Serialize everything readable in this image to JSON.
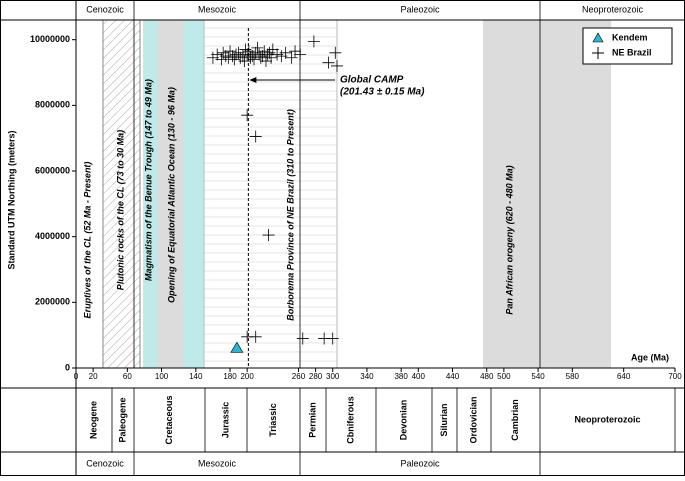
{
  "chart_data": {
    "type": "scatter",
    "ylabel": "Standard UTM Northing (meters)",
    "xlabel": "Age (Ma)",
    "xlim": [
      0,
      700
    ],
    "ylim": [
      0,
      10600000
    ],
    "xticks": [
      0,
      20,
      60,
      100,
      140,
      180,
      200,
      260,
      280,
      300,
      340,
      380,
      400,
      440,
      480,
      500,
      540,
      580,
      640,
      700
    ],
    "yticks": [
      0,
      2000000,
      4000000,
      6000000,
      8000000,
      10000000
    ],
    "eras_top": [
      "Cenozoic",
      "Mesozoic",
      "Paleozoic",
      "Neoproterozoic"
    ],
    "periods": [
      "Neogene",
      "Paleogene",
      "Cretaceous",
      "Jurassic",
      "Triassic",
      "Permian",
      "Cbniferous",
      "Devonian",
      "Silurian",
      "Ordovician",
      "Cambrian",
      "Neoproterozoic"
    ],
    "eras_bottom": [
      "Cenozoic",
      "Mesozoic",
      "Paleozoic"
    ],
    "band_labels": [
      "Eruptives of the CL (52 Ma - Present)",
      "Plutonic rocks of the CL (73 to 30 Ma)",
      "Magmatism of the Benue Trough (147 to 49 Ma)",
      "Opening of Equatorial Atlantic  Ocean  (130 - 96 Ma)",
      "Borborema Province of NE Brazil (310 to Present)",
      "Pan African orogeny (620 - 480 Ma)"
    ],
    "annotation": [
      "Global CAMP",
      "(201.43 ± 0.15 Ma)"
    ],
    "reference_line": 201.43,
    "series": [
      {
        "name": "Kendem",
        "color": "#2bb5d6",
        "marker": "triangle",
        "x": [
          188
        ],
        "y": [
          600000
        ]
      },
      {
        "name": "NE Brazil",
        "color": "#000000",
        "marker": "plus",
        "x": [
          160,
          165,
          170,
          172,
          175,
          178,
          180,
          183,
          185,
          187,
          190,
          192,
          195,
          197,
          198,
          200,
          202,
          204,
          206,
          208,
          210,
          212,
          214,
          216,
          218,
          220,
          222,
          224,
          226,
          228,
          230,
          235,
          240,
          245,
          252,
          256,
          262,
          278,
          295,
          303,
          305,
          200,
          210,
          225,
          200,
          210,
          265,
          290,
          300
        ],
        "y": [
          9450000,
          9550000,
          9400000,
          9600000,
          9500000,
          9450000,
          9650000,
          9500000,
          9400000,
          9550000,
          9600000,
          9450000,
          9500000,
          9350000,
          9700000,
          9550000,
          9650000,
          9450000,
          9500000,
          9400000,
          9600000,
          9750000,
          9550000,
          9450000,
          9500000,
          9650000,
          9350000,
          9550000,
          9600000,
          9450000,
          9700000,
          9550000,
          9500000,
          9600000,
          9450000,
          9650000,
          9550000,
          9950000,
          9300000,
          9600000,
          9200000,
          7700000,
          7050000,
          4050000,
          950000,
          950000,
          900000,
          900000,
          900000
        ]
      }
    ],
    "legend": "upper right"
  }
}
